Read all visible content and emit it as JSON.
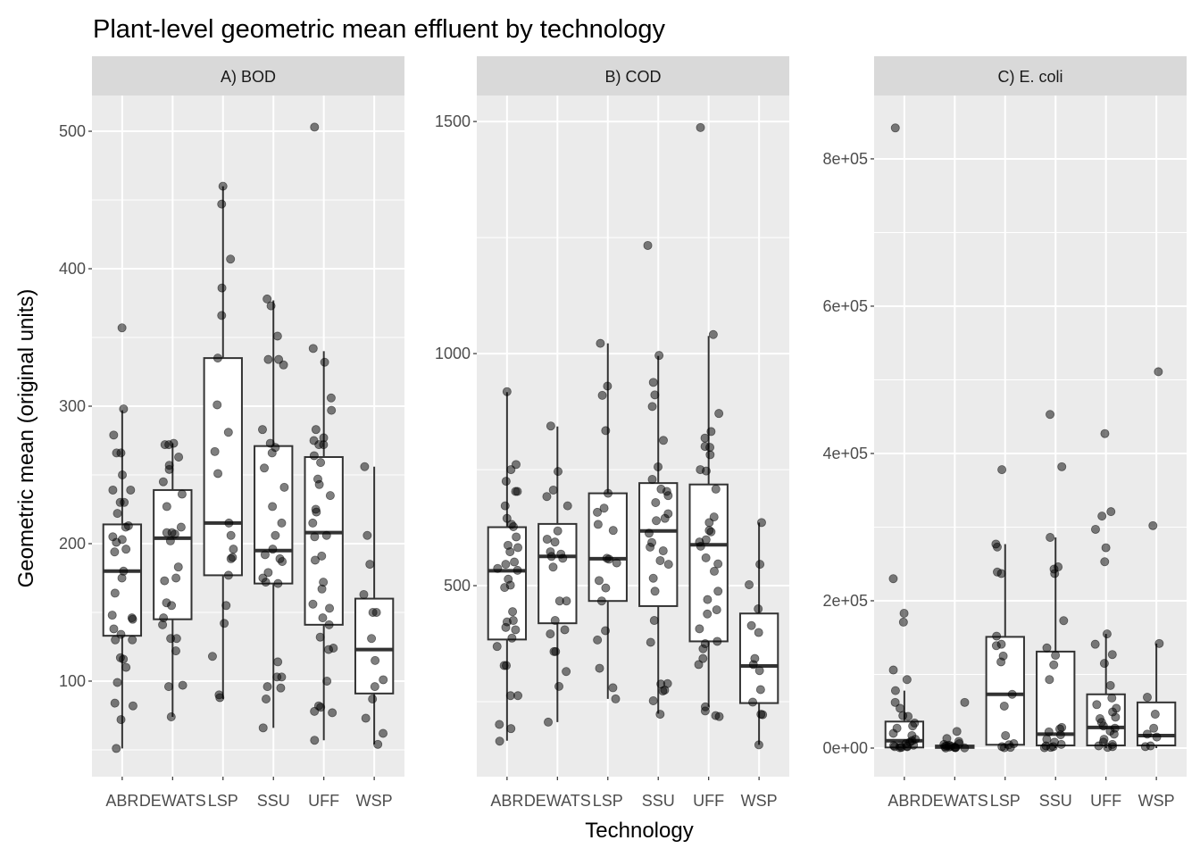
{
  "title": "Plant-level geometric mean effluent by technology",
  "xlabel": "Technology",
  "ylabel": "Geometric mean (original units)",
  "colors": {
    "panel_bg": "#EBEBEB",
    "grid": "#FFFFFF",
    "strip_bg": "#D9D9D9",
    "box_stroke": "#333333",
    "box_fill": "#FFFFFF",
    "point": "#000000",
    "tick_text": "#4D4D4D"
  },
  "chart_data": [
    {
      "type": "box",
      "title": "A) BOD",
      "categories": [
        "ABR",
        "DEWATS",
        "LSP",
        "SSU",
        "UFF",
        "WSP"
      ],
      "ylim": [
        30.5,
        526
      ],
      "yticks": [
        100,
        200,
        300,
        400,
        500
      ],
      "ytick_labels": [
        "100",
        "200",
        "300",
        "400",
        "500"
      ],
      "yminor": [
        50,
        150,
        250,
        350,
        450
      ],
      "boxes": [
        {
          "lower": 51,
          "q1": 133,
          "median": 180,
          "q3": 214,
          "upper": 297
        },
        {
          "lower": 74,
          "q1": 145,
          "median": 204,
          "q3": 239,
          "upper": 273
        },
        {
          "lower": 87,
          "q1": 177,
          "median": 215,
          "q3": 335,
          "upper": 460
        },
        {
          "lower": 66,
          "q1": 171,
          "median": 195,
          "q3": 271,
          "upper": 377
        },
        {
          "lower": 57,
          "q1": 141,
          "median": 208,
          "q3": 263,
          "upper": 340
        },
        {
          "lower": 54,
          "q1": 91,
          "median": 123,
          "q3": 160,
          "upper": 256
        }
      ],
      "points": [
        [
          357,
          298,
          279,
          266,
          266,
          250,
          239,
          239,
          230,
          230,
          222,
          213,
          212,
          205,
          203,
          201,
          196,
          194,
          180,
          175,
          164,
          148,
          146,
          145,
          138,
          134,
          130,
          130,
          117,
          116,
          110,
          99,
          84,
          82,
          72,
          51
        ],
        [
          273,
          272,
          272,
          263,
          257,
          254,
          245,
          236,
          227,
          212,
          208,
          208,
          207,
          202,
          183,
          175,
          173,
          157,
          155,
          146,
          141,
          131,
          131,
          122,
          97,
          96,
          74
        ],
        [
          460,
          447,
          407,
          386,
          366,
          335,
          301,
          281,
          267,
          251,
          215,
          206,
          196,
          190,
          189,
          177,
          155,
          142,
          118,
          90,
          88
        ],
        [
          378,
          373,
          351,
          334,
          334,
          330,
          283,
          273,
          270,
          266,
          255,
          241,
          227,
          215,
          206,
          196,
          192,
          189,
          187,
          179,
          175,
          172,
          171,
          114,
          103,
          103,
          96,
          95,
          87,
          66
        ],
        [
          503,
          342,
          332,
          306,
          297,
          283,
          277,
          275,
          272,
          272,
          264,
          259,
          247,
          243,
          235,
          225,
          223,
          215,
          206,
          205,
          191,
          188,
          172,
          167,
          156,
          153,
          146,
          141,
          132,
          124,
          123,
          100,
          82,
          81,
          78,
          77,
          57
        ],
        [
          256,
          206,
          185,
          163,
          150,
          150,
          131,
          115,
          101,
          96,
          87,
          73,
          62,
          54
        ]
      ]
    },
    {
      "type": "box",
      "title": "B) COD",
      "categories": [
        "ABR",
        "DEWATS",
        "LSP",
        "SSU",
        "UFF",
        "WSP"
      ],
      "ylim": [
        88.5,
        1556
      ],
      "yticks": [
        500,
        1000,
        1500
      ],
      "ytick_labels": [
        "500",
        "1000",
        "1500"
      ],
      "yminor": [
        250,
        750,
        1250
      ],
      "boxes": [
        {
          "lower": 166,
          "q1": 384,
          "median": 532,
          "q3": 626,
          "upper": 917
        },
        {
          "lower": 206,
          "q1": 419,
          "median": 563,
          "q3": 633,
          "upper": 843
        },
        {
          "lower": 256,
          "q1": 467,
          "median": 558,
          "q3": 699,
          "upper": 1022
        },
        {
          "lower": 224,
          "q1": 456,
          "median": 618,
          "q3": 721,
          "upper": 995
        },
        {
          "lower": 239,
          "q1": 380,
          "median": 588,
          "q3": 718,
          "upper": 1038
        },
        {
          "lower": 157,
          "q1": 247,
          "median": 327,
          "q3": 440,
          "upper": 636
        }
      ],
      "points": [
        [
          918,
          761,
          750,
          725,
          703,
          703,
          672,
          645,
          632,
          627,
          605,
          587,
          582,
          573,
          551,
          546,
          537,
          533,
          514,
          501,
          496,
          444,
          425,
          422,
          410,
          405,
          387,
          369,
          328,
          328,
          263,
          263,
          201,
          192,
          165
        ],
        [
          844,
          746,
          706,
          692,
          672,
          618,
          600,
          594,
          573,
          568,
          563,
          559,
          540,
          467,
          467,
          425,
          405,
          396,
          358,
          358,
          315,
          283,
          206
        ],
        [
          1022,
          930,
          910,
          834,
          699,
          667,
          658,
          632,
          619,
          559,
          557,
          549,
          511,
          495,
          467,
          403,
          383,
          322,
          280,
          256
        ],
        [
          1233,
          996,
          938,
          911,
          886,
          813,
          756,
          729,
          708,
          703,
          694,
          679,
          655,
          645,
          640,
          613,
          593,
          583,
          575,
          554,
          546,
          516,
          488,
          425,
          378,
          289,
          288,
          275,
          273,
          252,
          223
        ],
        [
          1487,
          1041,
          871,
          832,
          818,
          800,
          798,
          782,
          750,
          747,
          708,
          648,
          636,
          619,
          616,
          599,
          594,
          585,
          560,
          547,
          531,
          488,
          470,
          448,
          439,
          407,
          380,
          375,
          364,
          343,
          330,
          239,
          230,
          218,
          220
        ],
        [
          636,
          546,
          502,
          450,
          414,
          399,
          343,
          330,
          317,
          276,
          249,
          223,
          222,
          157
        ]
      ]
    },
    {
      "type": "box",
      "title": "C) E. coli",
      "categories": [
        "ABR",
        "DEWATS",
        "LSP",
        "SSU",
        "UFF",
        "WSP"
      ],
      "ylim": [
        -38800,
        886000
      ],
      "yticks": [
        0,
        200000,
        400000,
        600000,
        800000
      ],
      "ytick_labels": [
        "0e+00",
        "2e+05",
        "4e+05",
        "6e+05",
        "8e+05"
      ],
      "yminor": [
        100000,
        300000,
        500000,
        700000
      ],
      "boxes": [
        {
          "lower": 0,
          "q1": 800,
          "median": 10000,
          "q3": 36000,
          "upper": 78000
        },
        {
          "lower": 0,
          "q1": 200,
          "median": 1800,
          "q3": 3500,
          "upper": 8000
        },
        {
          "lower": 0,
          "q1": 4500,
          "median": 73000,
          "q3": 151000,
          "upper": 277000
        },
        {
          "lower": 0,
          "q1": 3600,
          "median": 19000,
          "q3": 131000,
          "upper": 286000
        },
        {
          "lower": 0,
          "q1": 3600,
          "median": 28000,
          "q3": 73000,
          "upper": 155000
        },
        {
          "lower": 0,
          "q1": 3600,
          "median": 17000,
          "q3": 62000,
          "upper": 142000
        }
      ],
      "points": [
        [
          842000,
          230000,
          183000,
          171000,
          106000,
          93000,
          78000,
          62000,
          54000,
          44000,
          43000,
          34000,
          30000,
          27000,
          20000,
          17000,
          12000,
          10000,
          8000,
          6000,
          4000,
          3500,
          3000,
          2500,
          2000,
          1800,
          1000,
          500
        ],
        [
          62000,
          22600,
          13000,
          9000,
          6000,
          5000,
          4000,
          3000,
          2500,
          2000,
          1500,
          1000,
          800,
          500,
          300,
          200
        ],
        [
          378000,
          277000,
          273000,
          239000,
          237000,
          152000,
          141000,
          139000,
          125000,
          117000,
          73000,
          57000,
          17000,
          6000,
          4500,
          2000,
          1000,
          500
        ],
        [
          453000,
          382000,
          286000,
          246000,
          243000,
          237000,
          173000,
          136000,
          126000,
          113000,
          93000,
          28000,
          26000,
          22000,
          18000,
          12000,
          8000,
          5000,
          3000,
          2000,
          1000,
          500
        ],
        [
          427000,
          321000,
          315000,
          297000,
          272000,
          253000,
          155000,
          141000,
          127000,
          115000,
          85000,
          68000,
          59000,
          54000,
          49000,
          42000,
          40000,
          35000,
          30000,
          27000,
          23000,
          19000,
          12000,
          8000,
          5000,
          3000,
          2000,
          1000
        ],
        [
          511000,
          302000,
          142000,
          69000,
          46000,
          27000,
          19000,
          15000,
          3000,
          2000
        ]
      ]
    }
  ]
}
